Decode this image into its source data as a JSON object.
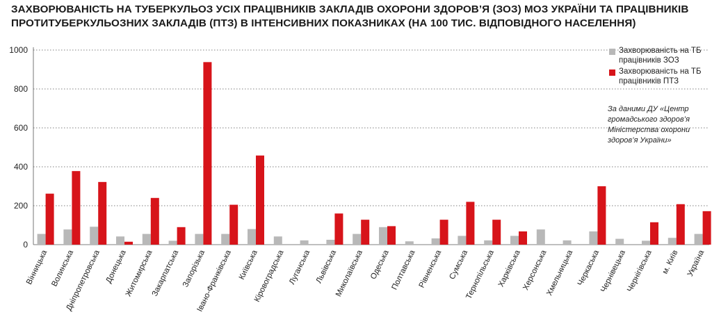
{
  "chart_title": {
    "line1": "ЗАХВОРЮВАНІСТЬ НА ТУБЕРКУЛЬОЗ УСІХ ПРАЦІВНИКІВ ЗАКЛАДІВ ОХОРОНИ ЗДОРОВ’Я (ЗОЗ) МОЗ УКРАЇНИ ТА ПРАЦІВНИКІВ",
    "line2": "ПРОТИТУБЕРКУЛЬОЗНИХ ЗАКЛАДІВ (ПТЗ) В ІНТЕНСИВНИХ ПОКАЗНИКАХ (НА 100 ТИС. ВІДПОВІДНОГО НАСЕЛЕННЯ)"
  },
  "legend": [
    {
      "label": "Захворюваність на ТБ працівників ЗОЗ",
      "color": "#b8b8b8"
    },
    {
      "label": "Захворюваність на ТБ працівників ПТЗ",
      "color": "#d7141a"
    }
  ],
  "source_note": "За даними ДУ «Центр громадського здоров’я Міністерства охорони здоров’я України»",
  "chart_data": {
    "type": "bar",
    "title": "ЗАХВОРЮВАНІСТЬ НА ТУБЕРКУЛЬОЗ УСІХ ПРАЦІВНИКІВ ЗАКЛАДІВ ОХОРОНИ ЗДОРОВ’Я (ЗОЗ) МОЗ УКРАЇНИ ТА ПРАЦІВНИКІВ ПРОТИТУБЕРКУЛЬОЗНИХ ЗАКЛАДІВ (ПТЗ) В ІНТЕНСИВНИХ ПОКАЗНИКАХ (НА 100 ТИС. ВІДПОВІДНОГО НАСЕЛЕННЯ)",
    "categories": [
      "Вінницька",
      "Волинська",
      "Дніпропетровська",
      "Донецька",
      "Житомирська",
      "Закарпатська",
      "Запорізька",
      "Івано-Франківська",
      "Київська",
      "Кіровоградська",
      "Луганська",
      "Львівська",
      "Миколаївська",
      "Одеська",
      "Полтавська",
      "Рівненська",
      "Сумська",
      "Тернопільська",
      "Харківська",
      "Херсонська",
      "Хмельницька",
      "Черкаська",
      "Чернівецька",
      "Чернігівська",
      "м. Київ",
      "Україна"
    ],
    "series": [
      {
        "name": "Захворюваність на ТБ працівників ЗОЗ",
        "color": "#b8b8b8",
        "values": [
          55,
          78,
          92,
          42,
          55,
          20,
          55,
          55,
          80,
          42,
          22,
          25,
          55,
          90,
          17,
          32,
          45,
          22,
          45,
          78,
          22,
          68,
          30,
          20,
          35,
          55
        ]
      },
      {
        "name": "Захворюваність на ТБ працівників ПТЗ",
        "color": "#d7141a",
        "values": [
          262,
          378,
          322,
          15,
          240,
          90,
          938,
          205,
          458,
          0,
          0,
          160,
          128,
          95,
          0,
          128,
          220,
          128,
          68,
          0,
          0,
          300,
          0,
          115,
          208,
          172
        ]
      }
    ],
    "ylim": [
      0,
      1000
    ],
    "yticks": [
      0,
      200,
      400,
      600,
      800,
      1000
    ],
    "grid": "horizontal dotted",
    "legend_position": "top-right"
  }
}
